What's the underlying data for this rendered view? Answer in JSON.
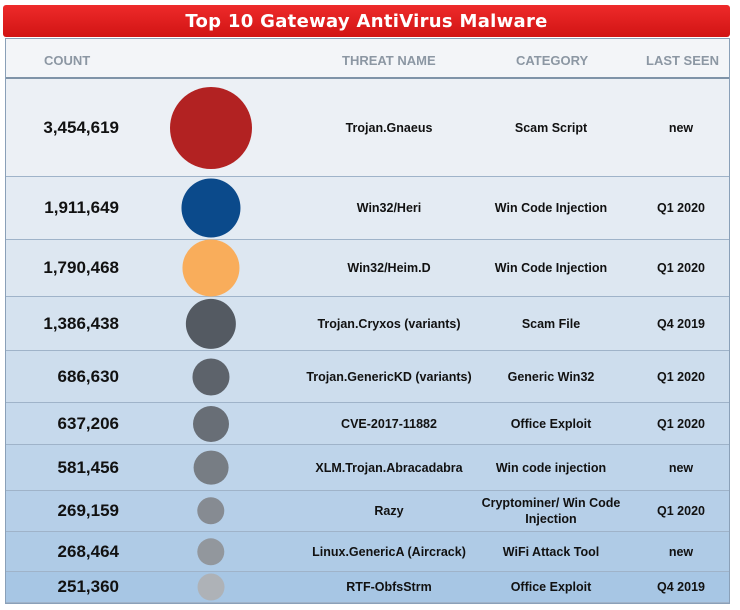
{
  "title": "Top 10 Gateway AntiVirus Malware",
  "headers": {
    "count": "COUNT",
    "threat": "THREAT NAME",
    "category": "CATEGORY",
    "last_seen": "LAST SEEN"
  },
  "chart_data": {
    "type": "table",
    "title": "Top 10 Gateway AntiVirus Malware",
    "columns": [
      "COUNT",
      "THREAT NAME",
      "CATEGORY",
      "LAST SEEN"
    ],
    "rows": [
      {
        "count_label": "3,454,619",
        "count": 3454619,
        "threat": "Trojan.Gnaeus",
        "category": "Scam Script",
        "last_seen": "new",
        "bubble_color": "#b22222"
      },
      {
        "count_label": "1,911,649",
        "count": 1911649,
        "threat": "Win32/Heri",
        "category": "Win Code Injection",
        "last_seen": "Q1 2020",
        "bubble_color": "#0b4a8b"
      },
      {
        "count_label": "1,790,468",
        "count": 1790468,
        "threat": "Win32/Heim.D",
        "category": "Win Code Injection",
        "last_seen": "Q1 2020",
        "bubble_color": "#f9ad5b"
      },
      {
        "count_label": "1,386,438",
        "count": 1386438,
        "threat": "Trojan.Cryxos (variants)",
        "category": "Scam File",
        "last_seen": "Q4 2019",
        "bubble_color": "#545a62"
      },
      {
        "count_label": "686,630",
        "count": 686630,
        "threat": "Trojan.GenericKD (variants)",
        "category": "Generic Win32",
        "last_seen": "Q1 2020",
        "bubble_color": "#5d636b"
      },
      {
        "count_label": "637,206",
        "count": 637206,
        "threat": "CVE-2017-11882",
        "category": "Office Exploit",
        "last_seen": "Q1 2020",
        "bubble_color": "#686e76"
      },
      {
        "count_label": "581,456",
        "count": 581456,
        "threat": "XLM.Trojan.Abracadabra",
        "category": "Win code injection",
        "last_seen": "new",
        "bubble_color": "#777d84"
      },
      {
        "count_label": "269,159",
        "count": 269159,
        "threat": "Razy",
        "category": "Cryptominer/ Win Code Injection",
        "last_seen": "Q1 2020",
        "bubble_color": "#868b92"
      },
      {
        "count_label": "268,464",
        "count": 268464,
        "threat": "Linux.GenericA (Aircrack)",
        "category": "WiFi Attack Tool",
        "last_seen": "new",
        "bubble_color": "#92979d"
      },
      {
        "count_label": "251,360",
        "count": 251360,
        "threat": "RTF-ObfsStrm",
        "category": "Office Exploit",
        "last_seen": "Q4 2019",
        "bubble_color": "#aeb2b7"
      }
    ]
  }
}
